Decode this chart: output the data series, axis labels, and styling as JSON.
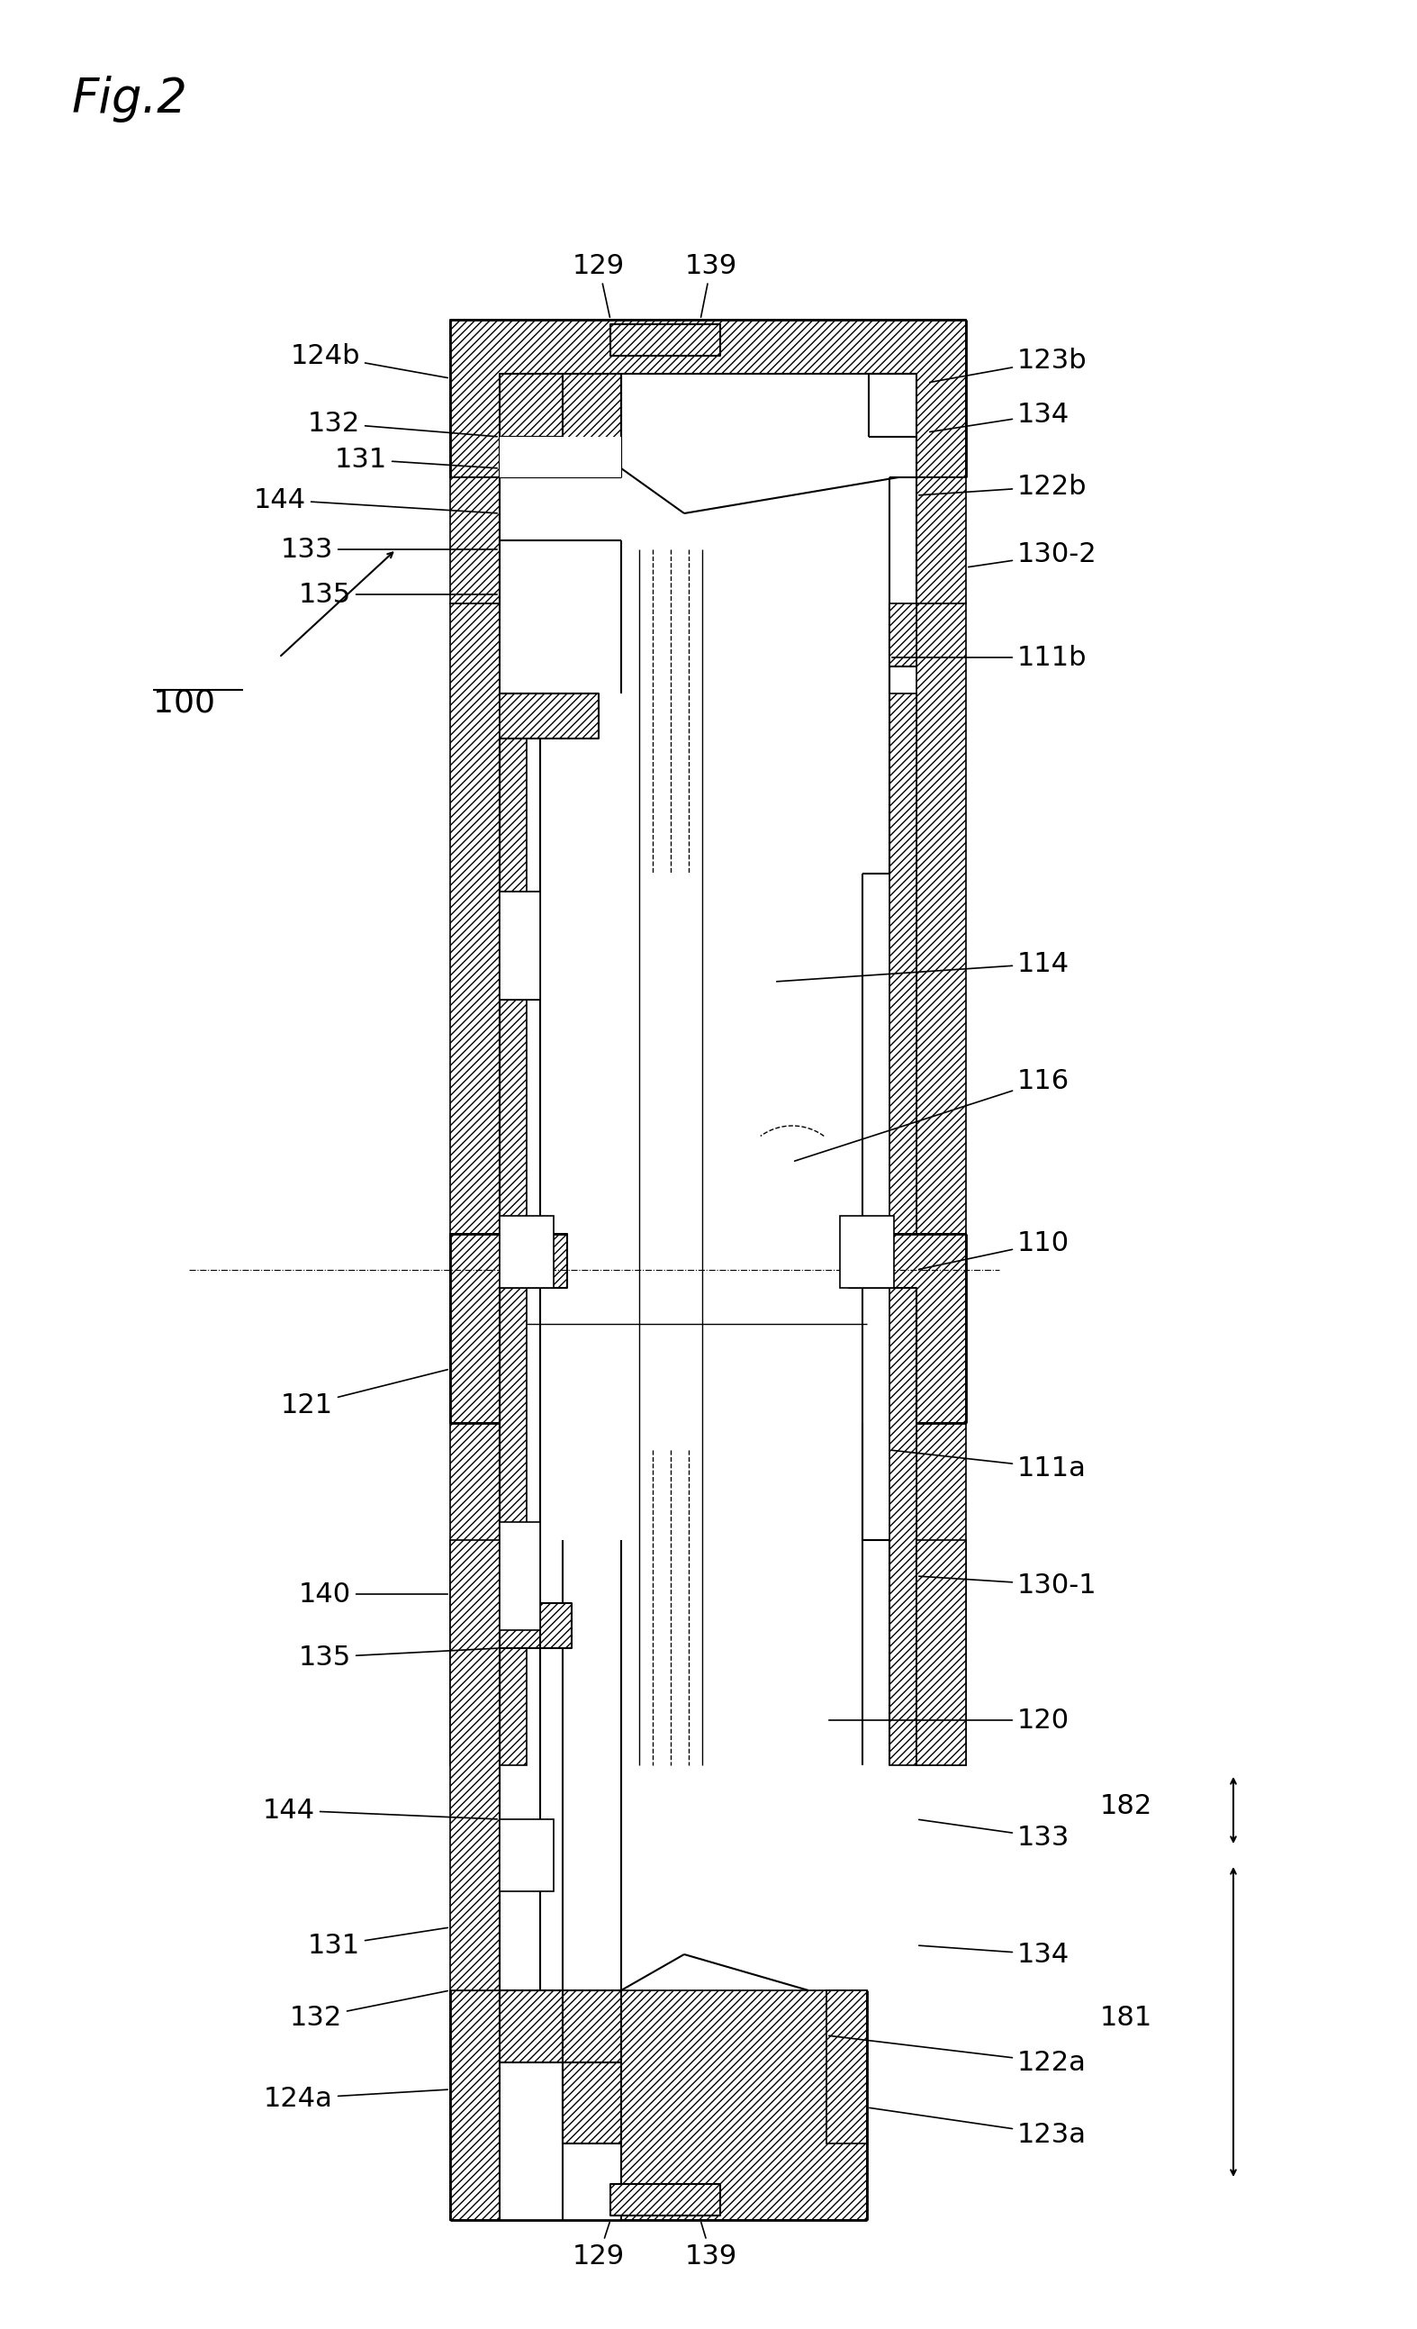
{
  "background_color": "#ffffff",
  "fig_width": 15.54,
  "fig_height": 25.66,
  "labels": {
    "fig_title": "Fig.2",
    "assembly_label": "100",
    "label_129_top": "129",
    "label_139_top": "139",
    "label_124b": "124b",
    "label_123b": "123b",
    "label_132_top": "132",
    "label_131_top": "131",
    "label_134_top": "134",
    "label_144_top": "144",
    "label_122b": "122b",
    "label_133_top": "133",
    "label_135_top": "135",
    "label_130_2": "130-2",
    "label_111b": "111b",
    "label_114": "114",
    "label_116": "116",
    "label_110": "110",
    "label_121": "121",
    "label_111a": "111a",
    "label_140": "140",
    "label_130_1": "130-1",
    "label_135_bot": "135",
    "label_120": "120",
    "label_144_bot": "144",
    "label_133_bot": "133",
    "label_134_bot": "134",
    "label_131_bot": "131",
    "label_132_bot": "132",
    "label_124a": "124a",
    "label_129_bot": "129",
    "label_139_bot": "139",
    "label_123a": "123a",
    "label_122a": "122a",
    "label_182": "182",
    "label_181": "181"
  }
}
